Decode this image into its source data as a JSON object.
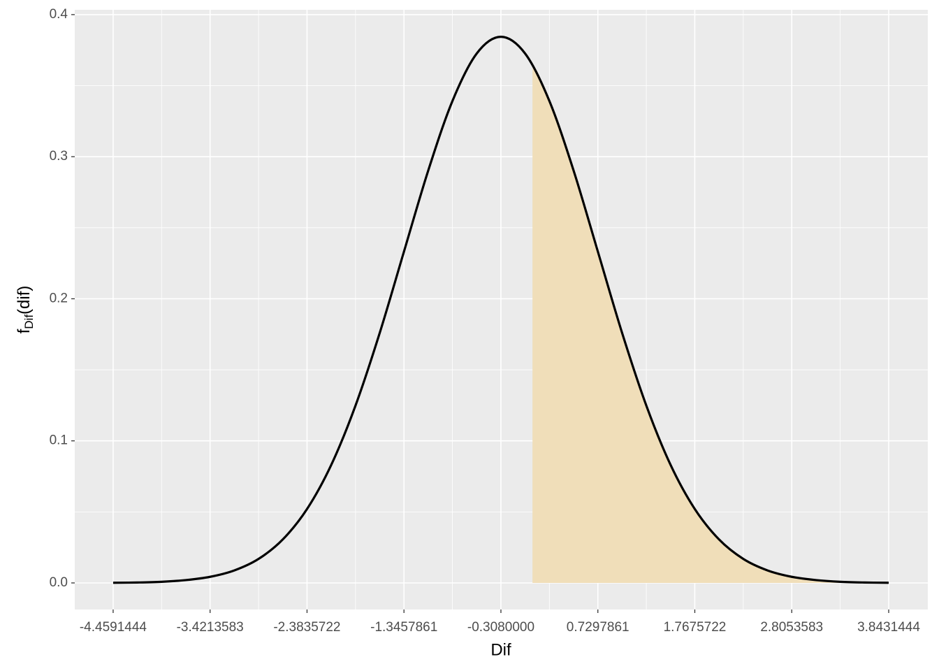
{
  "chart_data": {
    "type": "area-line",
    "xlabel": "Dif",
    "ylabel": {
      "main": "f",
      "subscript": "Dif",
      "rest": "(dif)"
    },
    "xlim": [
      -4.87,
      4.262
    ],
    "ylim": [
      -0.0187,
      0.4034
    ],
    "xticks": [
      -4.4591444,
      -3.4213583,
      -2.3835722,
      -1.3457861,
      {
        "value": -0.308,
        "label": "-0.3080000"
      },
      0.7297861,
      1.7675722,
      2.8053583,
      3.8431444
    ],
    "yticks": [
      {
        "value": 0,
        "label": "0.0"
      },
      0.1,
      0.2,
      0.3,
      0.4
    ],
    "grid": true,
    "minor_grid": true,
    "series": [
      {
        "name": "area",
        "kind": "area",
        "color": "#f0deb9",
        "x": [
          0.03,
          0.2109,
          0.4703,
          0.7298,
          0.9892,
          1.2487,
          1.5081,
          1.7676,
          2.027,
          2.2865,
          2.5459,
          2.8054,
          3.0648,
          3.3242,
          3.5837,
          3.8431
        ],
        "values": [
          0.3645,
          0.3392,
          0.2902,
          0.2332,
          0.176,
          0.1248,
          0.0831,
          0.052,
          0.0306,
          0.0169,
          0.0088,
          0.0043,
          0.002,
          0.0008,
          0.0003,
          0.0001
        ]
      },
      {
        "name": "density",
        "kind": "line",
        "color": "#000000",
        "x": [
          -4.4591,
          -4.1997,
          -3.9402,
          -3.6808,
          -3.4214,
          -3.1619,
          -2.9025,
          -2.643,
          -2.3836,
          -2.1241,
          -1.8647,
          -1.6052,
          -1.3458,
          -1.0863,
          -0.8269,
          -0.5674,
          -0.308,
          -0.0486,
          0.2109,
          0.4703,
          0.7298,
          0.9892,
          1.2487,
          1.5081,
          1.7676,
          2.027,
          2.2865,
          2.5459,
          2.8054,
          3.0648,
          3.3242,
          3.5837,
          3.8431
        ],
        "values": [
          0.0001,
          0.0003,
          0.0008,
          0.002,
          0.0043,
          0.0088,
          0.0169,
          0.0306,
          0.052,
          0.0831,
          0.1248,
          0.176,
          0.2332,
          0.2902,
          0.3392,
          0.3726,
          0.3844,
          0.3726,
          0.3392,
          0.2902,
          0.2332,
          0.176,
          0.1248,
          0.0831,
          0.052,
          0.0306,
          0.0169,
          0.0088,
          0.0043,
          0.002,
          0.0008,
          0.0003,
          0.0001
        ]
      }
    ]
  }
}
